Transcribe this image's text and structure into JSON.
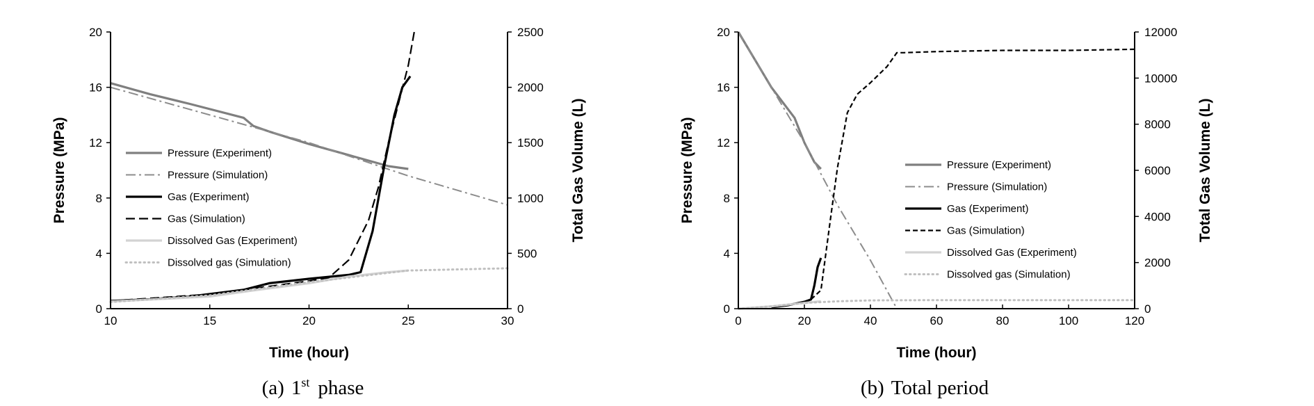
{
  "figure": {
    "caption_a": {
      "label": "(a)",
      "num": "1",
      "sup": "st",
      "word": "phase"
    },
    "caption_b": {
      "label": "(b)",
      "word": "Total  period"
    }
  },
  "chart_data": [
    {
      "type": "line",
      "xlabel": "Time (hour)",
      "ylabel": "Pressure (MPa)",
      "y2label": "Total Gas Volume (L)",
      "xlim": [
        10,
        30
      ],
      "ylim": [
        0,
        20
      ],
      "y2lim": [
        0,
        2500
      ],
      "xticks": [
        10,
        15,
        20,
        25,
        30
      ],
      "yticks": [
        0,
        4,
        8,
        12,
        16,
        20
      ],
      "y2ticks": [
        0,
        500,
        1000,
        1500,
        2000,
        2500
      ],
      "legend_position": "left-center",
      "series": [
        {
          "name": "Pressure (Experiment)",
          "axis": "left",
          "color": "#7f7f7f",
          "style": "solid-thick",
          "x": [
            10,
            12,
            14,
            16.7,
            17.2,
            18,
            20,
            22,
            24,
            25
          ],
          "y": [
            16.3,
            15.5,
            14.8,
            13.8,
            13.2,
            12.8,
            11.9,
            11.1,
            10.3,
            10.1
          ]
        },
        {
          "name": "Pressure (Simulation)",
          "axis": "left",
          "color": "#8c8c8c",
          "style": "dashdot",
          "x": [
            10,
            15,
            20,
            25,
            30
          ],
          "y": [
            16.0,
            14.0,
            12.0,
            9.6,
            7.5
          ]
        },
        {
          "name": "Gas (Experiment)",
          "axis": "right",
          "color": "#000000",
          "style": "solid-thick",
          "x": [
            10,
            12,
            14,
            16.7,
            18,
            20,
            22,
            22.6,
            23.2,
            23.8,
            24.3,
            24.7,
            25.1
          ],
          "y": [
            70,
            85,
            110,
            170,
            230,
            270,
            305,
            330,
            700,
            1300,
            1750,
            2000,
            2100
          ]
        },
        {
          "name": "Gas (Simulation)",
          "axis": "right",
          "color": "#000000",
          "style": "longdash",
          "x": [
            10,
            15,
            20,
            21,
            22,
            23,
            23.5,
            24,
            24.5,
            25,
            25.3
          ],
          "y": [
            70,
            130,
            250,
            280,
            440,
            800,
            1100,
            1500,
            1850,
            2200,
            2500
          ]
        },
        {
          "name": "Dissolved Gas (Experiment)",
          "axis": "right",
          "color": "#d3d3d3",
          "style": "solid-thick",
          "x": [
            10,
            15,
            17,
            20,
            22,
            24,
            25
          ],
          "y": [
            65,
            110,
            160,
            230,
            290,
            330,
            345
          ]
        },
        {
          "name": "Dissolved gas (Simulation)",
          "axis": "right",
          "color": "#c0c0c0",
          "style": "dotted",
          "x": [
            10,
            15,
            20,
            25,
            30
          ],
          "y": [
            60,
            120,
            240,
            345,
            365
          ]
        }
      ]
    },
    {
      "type": "line",
      "xlabel": "Time (hour)",
      "ylabel": "Pressure (MPa)",
      "y2label": "Total Gas Volume (L)",
      "xlim": [
        0,
        120
      ],
      "ylim": [
        0,
        20
      ],
      "y2lim": [
        0,
        12000
      ],
      "xticks": [
        0,
        20,
        40,
        60,
        80,
        100,
        120
      ],
      "yticks": [
        0,
        4,
        8,
        12,
        16,
        20
      ],
      "y2ticks": [
        0,
        2000,
        4000,
        6000,
        8000,
        10000,
        12000
      ],
      "legend_position": "right-center",
      "series": [
        {
          "name": "Pressure (Experiment)",
          "axis": "left",
          "color": "#7f7f7f",
          "style": "solid-thick",
          "x": [
            0,
            5,
            10,
            17,
            20,
            23,
            25
          ],
          "y": [
            20,
            18,
            16,
            13.8,
            12,
            10.6,
            10.1
          ]
        },
        {
          "name": "Pressure (Simulation)",
          "axis": "left",
          "color": "#8c8c8c",
          "style": "dashdot",
          "x": [
            0,
            10,
            20,
            30,
            40,
            48,
            120
          ],
          "y": [
            20,
            16,
            12,
            7.5,
            3.5,
            0,
            0
          ]
        },
        {
          "name": "Gas (Experiment)",
          "axis": "right",
          "color": "#000000",
          "style": "solid-thick",
          "x": [
            10,
            15,
            20,
            22,
            23,
            24,
            25
          ],
          "y": [
            60,
            150,
            300,
            400,
            1000,
            1800,
            2200
          ]
        },
        {
          "name": "Gas (Simulation)",
          "axis": "right",
          "color": "#000000",
          "style": "shortdash",
          "x": [
            22,
            25,
            28,
            30,
            33,
            36,
            40,
            45,
            48,
            50,
            60,
            80,
            100,
            120
          ],
          "y": [
            400,
            800,
            4000,
            6100,
            8500,
            9300,
            9800,
            10500,
            11100,
            11100,
            11150,
            11200,
            11200,
            11250
          ]
        },
        {
          "name": "Dissolved Gas (Experiment)",
          "axis": "right",
          "color": "#d3d3d3",
          "style": "solid-thick",
          "x": [
            0,
            10,
            20,
            25
          ],
          "y": [
            0,
            100,
            250,
            320
          ]
        },
        {
          "name": "Dissolved gas (Simulation)",
          "axis": "right",
          "color": "#c0c0c0",
          "style": "dotted",
          "x": [
            0,
            10,
            20,
            30,
            40,
            60,
            80,
            100,
            120
          ],
          "y": [
            0,
            100,
            250,
            320,
            360,
            370,
            370,
            370,
            370
          ]
        }
      ]
    }
  ]
}
